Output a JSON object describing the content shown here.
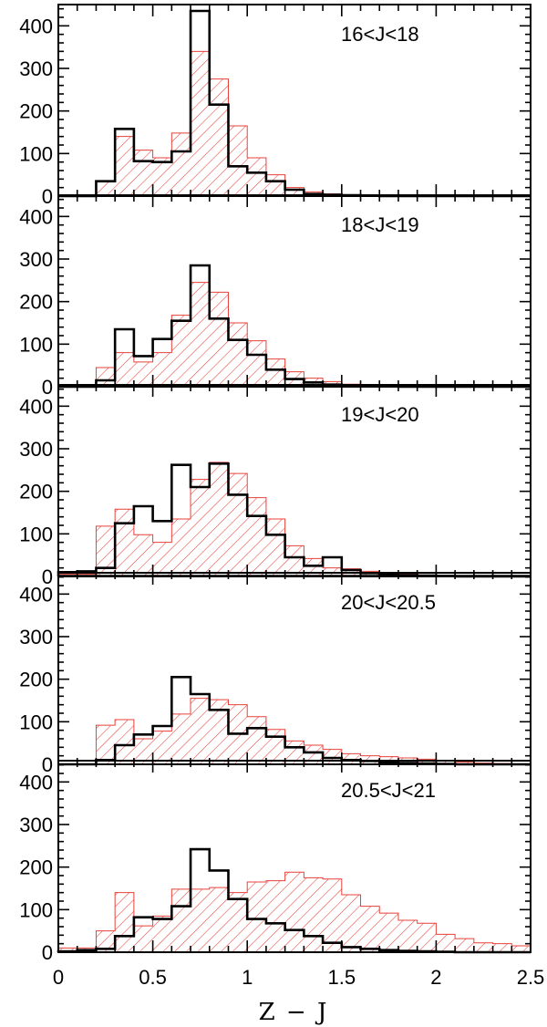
{
  "chart_data": {
    "type": "histogram",
    "xlabel": "Z  −  J",
    "xlim": [
      0,
      2.5
    ],
    "ylim": [
      0,
      450
    ],
    "x_ticks": [
      "0",
      "0.5",
      "1",
      "1.5",
      "2",
      "2.5"
    ],
    "y_ticks": [
      "0",
      "100",
      "200",
      "300",
      "400"
    ],
    "bin_edges": [
      0,
      0.1,
      0.2,
      0.3,
      0.4,
      0.5,
      0.6,
      0.7,
      0.8,
      0.9,
      1.0,
      1.1,
      1.2,
      1.3,
      1.4,
      1.5,
      1.6,
      1.7,
      1.8,
      1.9,
      2.0,
      2.1,
      2.2,
      2.3,
      2.4,
      2.5
    ],
    "colors": {
      "observed": "#000000",
      "model": "#e8413a"
    },
    "panels": [
      {
        "label": "16<J<18",
        "observed": [
          0,
          0,
          35,
          158,
          82,
          80,
          105,
          435,
          215,
          70,
          55,
          35,
          15,
          5,
          3,
          2,
          1,
          0,
          0,
          0,
          0,
          0,
          0,
          0,
          0
        ],
        "model": [
          0,
          0,
          35,
          140,
          108,
          90,
          148,
          340,
          275,
          165,
          90,
          50,
          20,
          10,
          5,
          3,
          2,
          1,
          0,
          0,
          0,
          0,
          0,
          0,
          0
        ]
      },
      {
        "label": "18<J<19",
        "observed": [
          0,
          0,
          15,
          135,
          72,
          112,
          155,
          285,
          160,
          110,
          75,
          40,
          18,
          10,
          5,
          3,
          2,
          1,
          0,
          0,
          0,
          0,
          0,
          0,
          0
        ],
        "model": [
          0,
          0,
          45,
          80,
          58,
          80,
          168,
          245,
          222,
          150,
          108,
          65,
          35,
          20,
          12,
          6,
          3,
          2,
          0,
          0,
          0,
          0,
          0,
          0,
          0
        ]
      },
      {
        "label": "19<J<20",
        "observed": [
          10,
          12,
          20,
          125,
          165,
          130,
          262,
          210,
          265,
          192,
          142,
          98,
          45,
          25,
          45,
          15,
          8,
          5,
          3,
          2,
          1,
          0,
          0,
          0,
          0
        ],
        "model": [
          5,
          5,
          118,
          158,
          98,
          80,
          135,
          228,
          268,
          242,
          185,
          135,
          72,
          42,
          20,
          18,
          12,
          8,
          5,
          3,
          2,
          1,
          0,
          0,
          0
        ],
        "observed_zero": true
      },
      {
        "label": "20<J<20.5",
        "observed": [
          0,
          0,
          10,
          45,
          70,
          90,
          205,
          165,
          128,
          72,
          85,
          65,
          40,
          28,
          15,
          10,
          8,
          5,
          3,
          2,
          1,
          0,
          0,
          0,
          0
        ],
        "model": [
          0,
          0,
          92,
          105,
          60,
          78,
          118,
          155,
          152,
          140,
          112,
          82,
          55,
          45,
          35,
          25,
          20,
          18,
          15,
          12,
          8,
          5,
          3,
          2,
          1
        ]
      },
      {
        "label": "20.5<J<21",
        "observed": [
          2,
          5,
          8,
          38,
          82,
          78,
          108,
          242,
          192,
          125,
          78,
          68,
          52,
          38,
          22,
          12,
          8,
          5,
          3,
          2,
          1,
          0,
          0,
          0,
          0
        ],
        "model": [
          10,
          10,
          50,
          140,
          62,
          85,
          148,
          148,
          152,
          140,
          165,
          168,
          188,
          175,
          172,
          135,
          108,
          92,
          75,
          68,
          42,
          32,
          22,
          20,
          15
        ]
      }
    ]
  }
}
